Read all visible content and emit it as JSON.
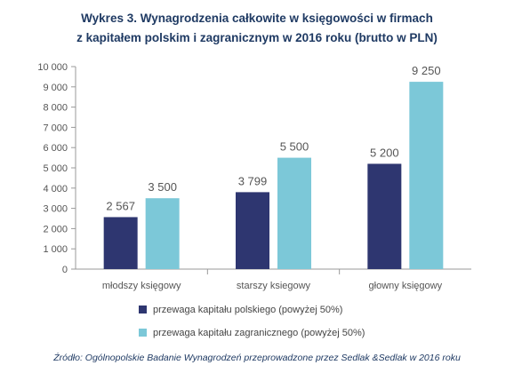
{
  "title_line1": "Wykres 3. Wynagrodzenia całkowite w księgowości w firmach",
  "title_line2": "z kapitałem polskim i zagranicznym w 2016 roku (brutto w PLN)",
  "source": "Źródło: Ogólnopolskie Badanie Wynagrodzeń przeprowadzone przez Sedlak &Sedlak w 2016 roku",
  "colors": {
    "polish": "#2e3670",
    "foreign": "#7cc8d8",
    "axis": "#999999",
    "grid": "#dddddd"
  },
  "chart_data": {
    "type": "bar",
    "title": "Wykres 3. Wynagrodzenia całkowite w księgowości w firmach z kapitałem polskim i zagranicznym w 2016 roku (brutto w PLN)",
    "categories": [
      "młodszy księgowy",
      "starszy ksiegowy",
      "głowny księgowy"
    ],
    "series": [
      {
        "name": "przewaga kapitału polskiego (powyżej 50%)",
        "values": [
          2567,
          3799,
          5200
        ],
        "labels": [
          "2 567",
          "3 799",
          "5 200"
        ]
      },
      {
        "name": "przewaga kapitału zagranicznego (powyżej 50%)",
        "values": [
          3500,
          5500,
          9250
        ],
        "labels": [
          "3 500",
          "5 500",
          "9 250"
        ]
      }
    ],
    "ylim": [
      0,
      10000
    ],
    "yticks": [
      0,
      1000,
      2000,
      3000,
      4000,
      5000,
      6000,
      7000,
      8000,
      9000,
      10000
    ],
    "ytick_labels": [
      "0",
      "1 000",
      "2 000",
      "3 000",
      "4 000",
      "5 000",
      "6 000",
      "7 000",
      "8 000",
      "9 000",
      "10 000"
    ],
    "legend": "bottom",
    "grid": false
  }
}
